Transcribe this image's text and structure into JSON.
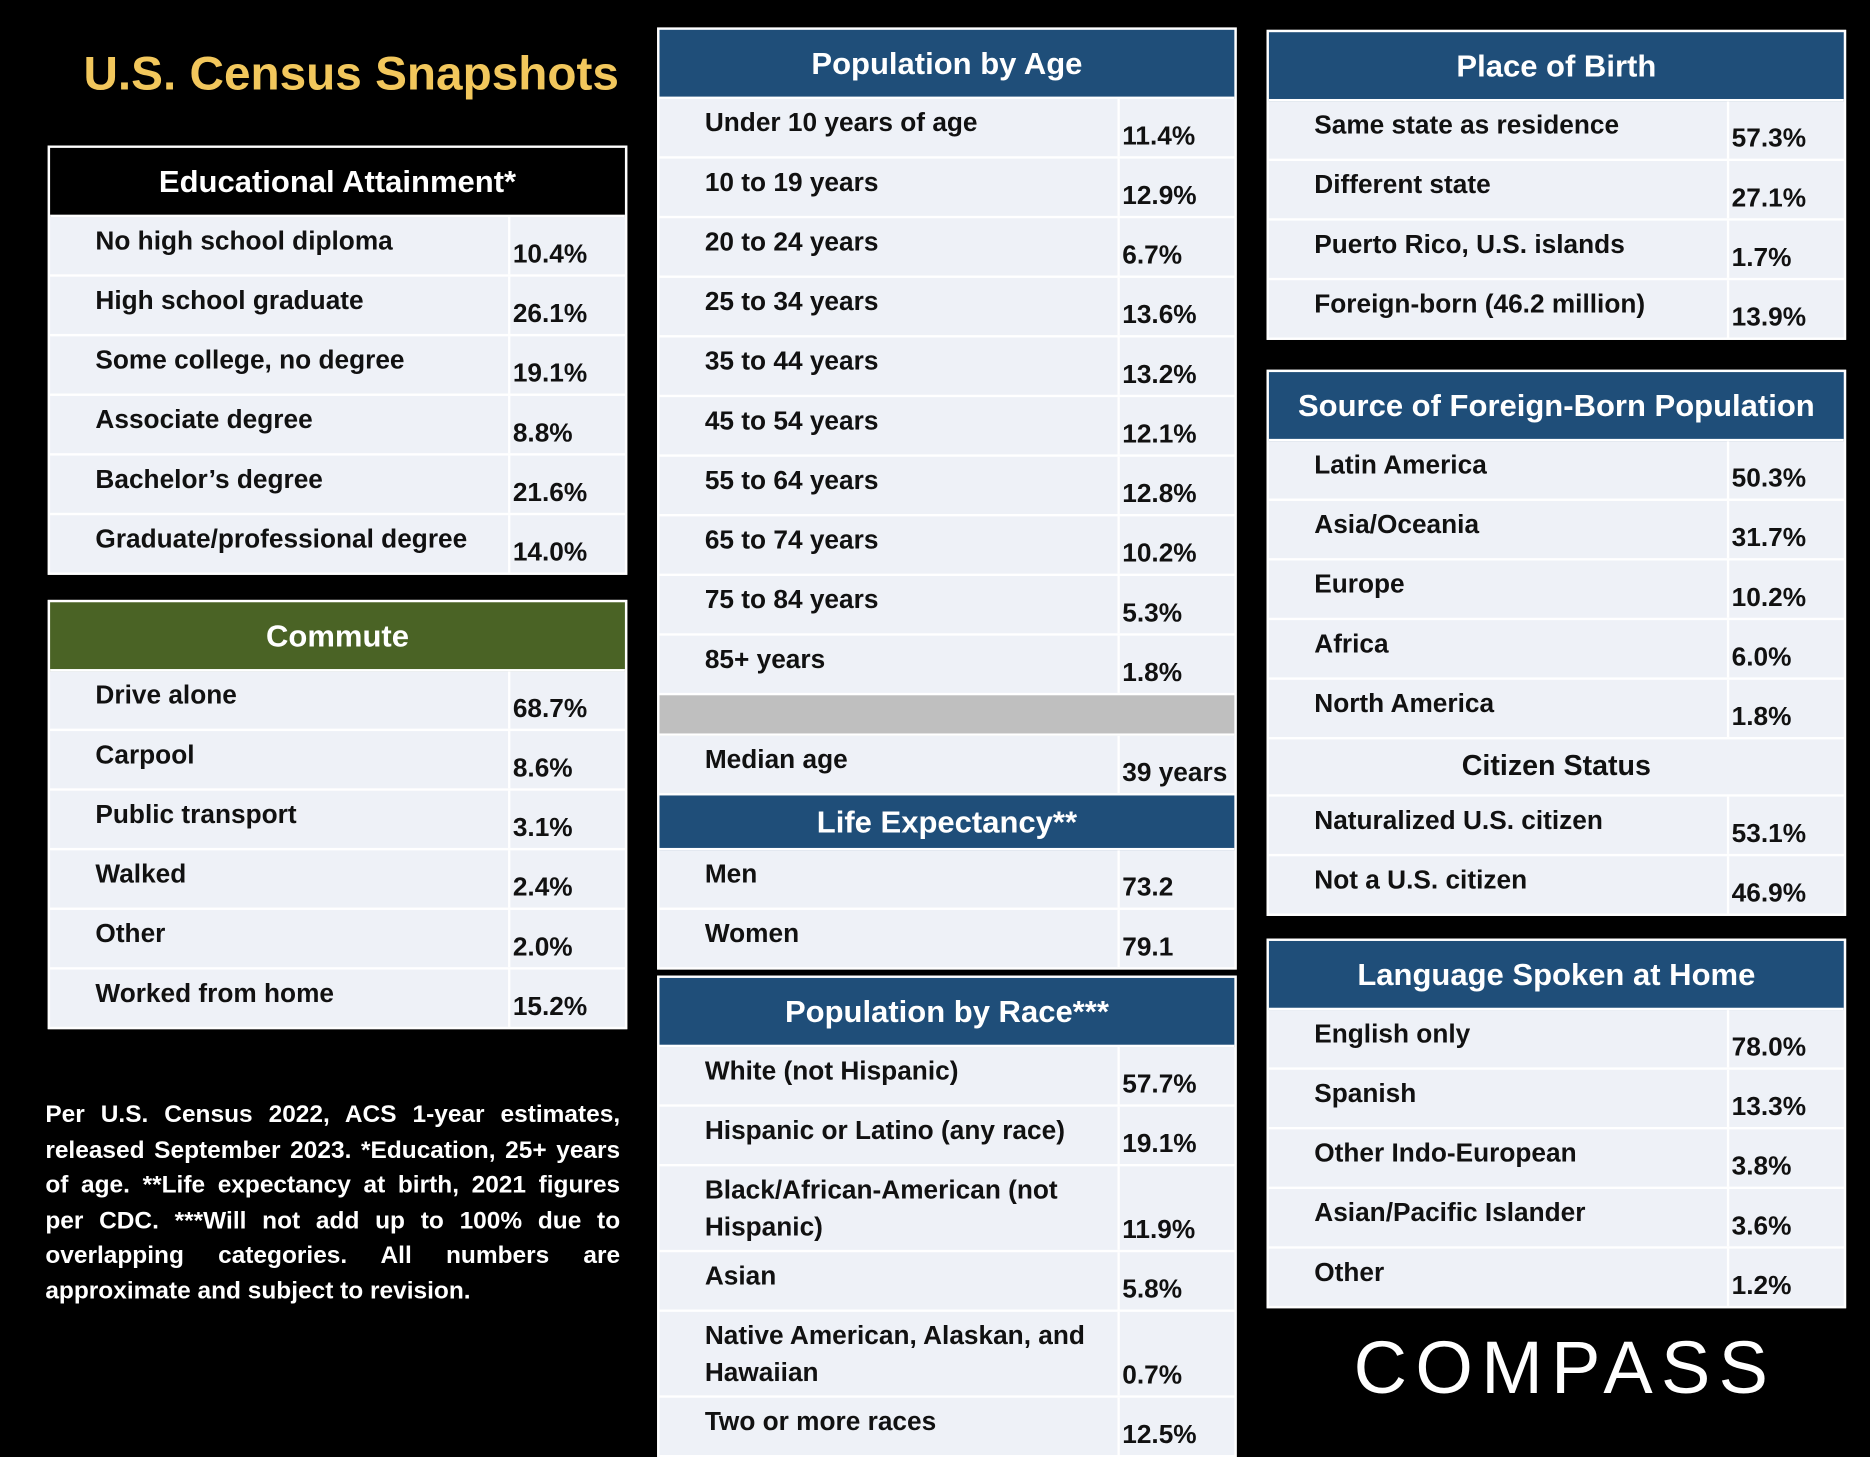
{
  "title": "U.S. Census Snapshots",
  "panels": [
    {
      "sections": [
        {
          "header": "Educational Attainment*",
          "rows": [
            [
              "No high school diploma",
              "10.4%"
            ],
            [
              "High school graduate",
              "26.1%"
            ],
            [
              "Some college, no degree",
              "19.1%"
            ],
            [
              "Associate degree",
              "8.8%"
            ],
            [
              "Bachelor’s degree",
              "21.6%"
            ],
            [
              "Graduate/professional degree",
              "14.0%"
            ]
          ]
        }
      ]
    },
    {
      "sections": [
        {
          "header": "Commute",
          "rows": [
            [
              "Drive alone",
              "68.7%"
            ],
            [
              "Carpool",
              "8.6%"
            ],
            [
              "Public transport",
              "3.1%"
            ],
            [
              "Walked",
              "2.4%"
            ],
            [
              "Other",
              "2.0%"
            ],
            [
              "Worked from home",
              "15.2%"
            ]
          ]
        }
      ]
    },
    {
      "sections": [
        {
          "header": "Population by Age",
          "rows": [
            [
              "Under 10 years of age",
              "11.4%"
            ],
            [
              "10 to 19 years",
              "12.9%"
            ],
            [
              "20 to 24 years",
              "6.7%"
            ],
            [
              "25 to 34 years",
              "13.6%"
            ],
            [
              "35 to 44 years",
              "13.2%"
            ],
            [
              "45 to 54 years",
              "12.1%"
            ],
            [
              "55 to 64 years",
              "12.8%"
            ],
            [
              "65 to 74 years",
              "10.2%"
            ],
            [
              "75 to 84 years",
              "5.3%"
            ],
            [
              "85+ years",
              "1.8%"
            ]
          ]
        },
        {
          "rows": [
            [
              "Median age",
              "39 years"
            ]
          ]
        },
        {
          "header": "Life Expectancy**",
          "rows": [
            [
              "Men",
              "73.2"
            ],
            [
              "Women",
              "79.1"
            ]
          ]
        }
      ]
    },
    {
      "sections": [
        {
          "header": "Population by Race***",
          "rows": [
            [
              "White (not Hispanic)",
              "57.7%"
            ],
            [
              "Hispanic or Latino (any race)",
              "19.1%"
            ],
            [
              "Black/African-American (not Hispanic)",
              "11.9%"
            ],
            [
              "Asian",
              "5.8%"
            ],
            [
              "Native American, Alaskan, and Hawaiian",
              "0.7%"
            ],
            [
              "Two or more races",
              "12.5%"
            ]
          ]
        }
      ]
    },
    {
      "sections": [
        {
          "header": "Place of Birth",
          "rows": [
            [
              "Same state as residence",
              "57.3%"
            ],
            [
              "Different state",
              "27.1%"
            ],
            [
              "Puerto Rico, U.S. islands",
              "1.7%"
            ],
            [
              "Foreign-born (46.2 million)",
              "13.9%"
            ]
          ]
        }
      ]
    },
    {
      "sections": [
        {
          "header": "Source of Foreign-Born Population",
          "rows": [
            [
              "Latin America",
              "50.3%"
            ],
            [
              "Asia/Oceania",
              "31.7%"
            ],
            [
              "Europe",
              "10.2%"
            ],
            [
              "Africa",
              "6.0%"
            ],
            [
              "North America",
              "1.8%"
            ]
          ]
        },
        {
          "subheader": "Citizen Status",
          "rows": [
            [
              "Naturalized U.S. citizen",
              "53.1%"
            ],
            [
              "Not a U.S. citizen",
              "46.9%"
            ]
          ]
        }
      ]
    },
    {
      "sections": [
        {
          "header": "Language Spoken at Home",
          "rows": [
            [
              "English only",
              "78.0%"
            ],
            [
              "Spanish",
              "13.3%"
            ],
            [
              "Other Indo-European",
              "3.8%"
            ],
            [
              "Asian/Pacific Islander",
              "3.6%"
            ],
            [
              "Other",
              "1.2%"
            ]
          ]
        }
      ]
    }
  ],
  "footnote": "Per U.S. Census 2022, ACS 1-year estimates, released September 2023. *Education, 25+ years of age. **Life expectancy at birth, 2021 figures per CDC. ***Will not add up to 100% due to overlapping categories. All numbers are approximate and subject to revision.",
  "logo": "COMPASS"
}
